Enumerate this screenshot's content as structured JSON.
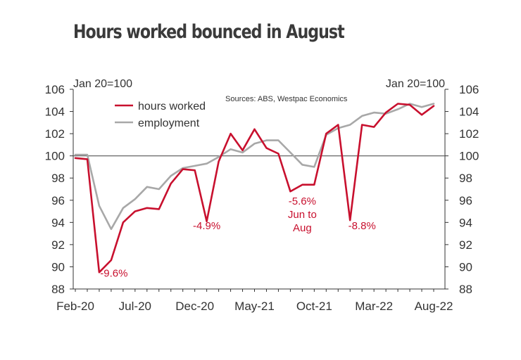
{
  "chart_data": {
    "type": "line",
    "title": "Hours worked bounced in August",
    "left_axis_label": "Jan 20=100",
    "right_axis_label": "Jan 20=100",
    "source": "Sources: ABS, Westpac Economics",
    "x": [
      "Feb-20",
      "Mar-20",
      "Apr-20",
      "May-20",
      "Jun-20",
      "Jul-20",
      "Aug-20",
      "Sep-20",
      "Oct-20",
      "Nov-20",
      "Dec-20",
      "Jan-21",
      "Feb-21",
      "Mar-21",
      "Apr-21",
      "May-21",
      "Jun-21",
      "Jul-21",
      "Aug-21",
      "Sep-21",
      "Oct-21",
      "Nov-21",
      "Dec-21",
      "Jan-22",
      "Feb-22",
      "Mar-22",
      "Apr-22",
      "May-22",
      "Jun-22",
      "Jul-22",
      "Aug-22"
    ],
    "x_tick_labels": [
      "Feb-20",
      "Jul-20",
      "Dec-20",
      "May-21",
      "Oct-21",
      "Mar-22",
      "Aug-22"
    ],
    "y_ticks": [
      88,
      90,
      92,
      94,
      96,
      98,
      100,
      102,
      104,
      106
    ],
    "ylim": [
      88,
      106
    ],
    "reference_line": 100,
    "grid": false,
    "legend_position": "top-left",
    "series": [
      {
        "name": "hours worked",
        "color": "#c8102e",
        "values": [
          99.8,
          99.7,
          89.5,
          90.6,
          94.0,
          95.0,
          95.3,
          95.2,
          97.5,
          98.8,
          98.7,
          94.1,
          99.5,
          102.0,
          100.5,
          102.4,
          100.7,
          100.2,
          96.8,
          97.4,
          97.4,
          102.0,
          102.8,
          94.2,
          102.8,
          102.6,
          103.9,
          104.7,
          104.6,
          103.7,
          104.5
        ]
      },
      {
        "name": "employment",
        "color": "#a8a8a8",
        "values": [
          100.1,
          100.1,
          95.5,
          93.4,
          95.3,
          96.1,
          97.2,
          97.0,
          98.2,
          98.9,
          99.1,
          99.3,
          99.9,
          100.6,
          100.3,
          101.1,
          101.4,
          101.4,
          100.3,
          99.2,
          99.0,
          101.9,
          102.5,
          102.8,
          103.6,
          103.9,
          103.8,
          104.2,
          104.7,
          104.4,
          104.7
        ]
      }
    ],
    "annotations": [
      {
        "text": "-9.6%",
        "x": "May-20",
        "y": 89.1
      },
      {
        "text": "-4.9%",
        "x": "Jan-21",
        "y": 93.4
      },
      {
        "text": "-5.6%",
        "x": "Sep-21",
        "y": 95.6
      },
      {
        "text": "Jun to",
        "x": "Sep-21",
        "y": 94.4
      },
      {
        "text": "Aug",
        "x": "Sep-21",
        "y": 93.2
      },
      {
        "text": "-8.8%",
        "x": "Feb-22",
        "y": 93.4
      }
    ]
  }
}
